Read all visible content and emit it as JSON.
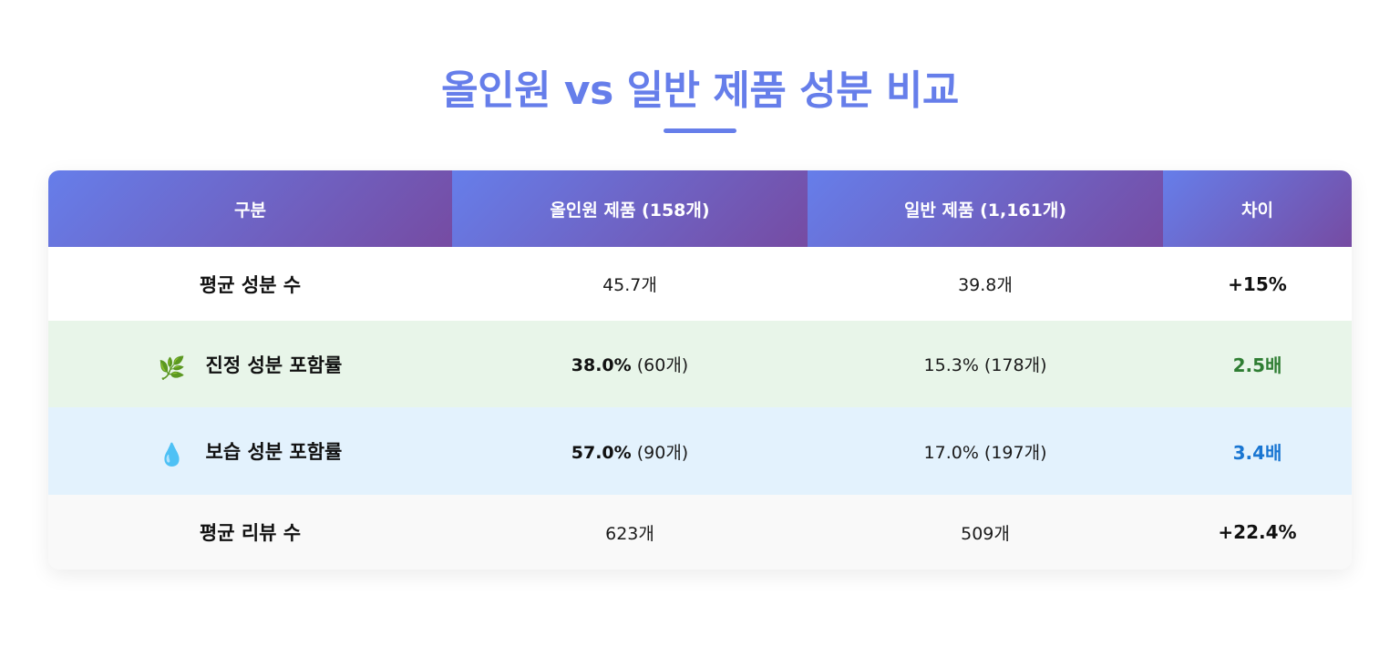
{
  "page": {
    "title": "올인원 vs 일반 제품 성분 비교",
    "accent_color": "#667eea",
    "header_gradient": [
      "#667eea",
      "#764ba2"
    ]
  },
  "table": {
    "headers": [
      "구분",
      "올인원 제품 (158개)",
      "일반 제품 (1,161개)",
      "차이"
    ],
    "rows": [
      {
        "label": "평균 성분 수",
        "icon": "",
        "allinone_main": "45.7개",
        "allinone_sub": "",
        "general": "39.8개",
        "diff": "+15%",
        "diff_color": "#111111",
        "row_bg": "#ffffff"
      },
      {
        "label": "진정 성분 포함률",
        "icon": "🌿",
        "icon_name": "herb-leaf-icon",
        "allinone_main": "38.0%",
        "allinone_sub": " (60개)",
        "general": "15.3% (178개)",
        "diff": "2.5배",
        "diff_color": "#2e7d32",
        "row_bg": "#e8f5e9"
      },
      {
        "label": "보습 성분 포함률",
        "icon": "💧",
        "icon_name": "water-droplet-icon",
        "allinone_main": "57.0%",
        "allinone_sub": " (90개)",
        "general": "17.0% (197개)",
        "diff": "3.4배",
        "diff_color": "#1976d2",
        "row_bg": "#e3f2fd"
      },
      {
        "label": "평균 리뷰 수",
        "icon": "",
        "allinone_main": "623개",
        "allinone_sub": "",
        "general": "509개",
        "diff": "+22.4%",
        "diff_color": "#111111",
        "row_bg": "#f9f9f9"
      }
    ]
  }
}
